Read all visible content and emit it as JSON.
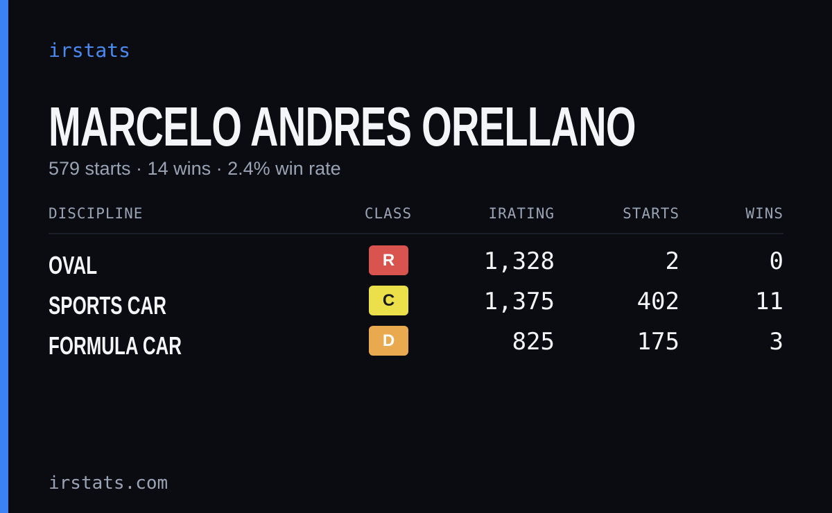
{
  "brand": "irstats",
  "title": "MARCELO ANDRES ORELLANO",
  "subtitle": "579 starts · 14 wins · 2.4% win rate",
  "table": {
    "headers": [
      "DISCIPLINE",
      "CLASS",
      "IRATING",
      "STARTS",
      "WINS"
    ],
    "rows": [
      {
        "discipline": "OVAL",
        "class": "R",
        "class_color": "#d9534f",
        "class_text_color": "#ffffff",
        "irating": "1,328",
        "starts": "2",
        "wins": "0"
      },
      {
        "discipline": "SPORTS CAR",
        "class": "C",
        "class_color": "#ebe04a",
        "class_text_color": "#1a1a1a",
        "irating": "1,375",
        "starts": "402",
        "wins": "11"
      },
      {
        "discipline": "FORMULA CAR",
        "class": "D",
        "class_color": "#e9a94e",
        "class_text_color": "#ffffff",
        "irating": "825",
        "starts": "175",
        "wins": "3"
      }
    ]
  },
  "footer": "irstats.com"
}
